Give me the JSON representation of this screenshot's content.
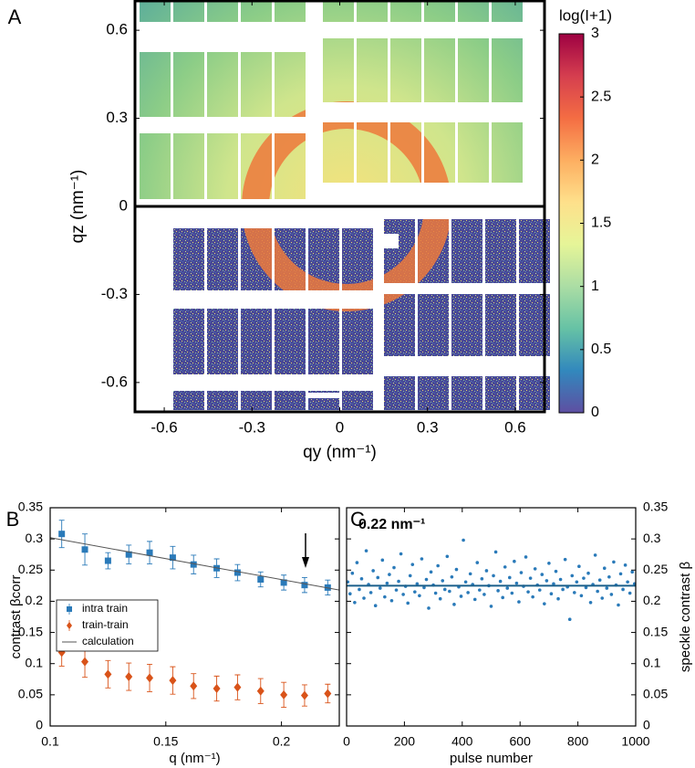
{
  "chart_data": [
    {
      "type": "heatmap",
      "panel_label": "A",
      "xlabel": "qy (nm⁻¹)",
      "ylabel": "qz (nm⁻¹)",
      "xlim": [
        -0.7,
        0.7
      ],
      "xticks": [
        -0.6,
        -0.3,
        0,
        0.3,
        0.6
      ],
      "ylim": [
        -0.7,
        0.7
      ],
      "yticks": [
        -0.6,
        -0.3,
        0,
        0.3,
        0.6
      ],
      "colorbar_label": "log(I+1)",
      "clim": [
        0,
        3
      ],
      "cticks": [
        0,
        0.5,
        1,
        1.5,
        2,
        2.5,
        3
      ],
      "colormap": [
        "#5e4fa2",
        "#3288bd",
        "#66c2a5",
        "#abdda4",
        "#e6f598",
        "#fee08b",
        "#fdae61",
        "#f46d43",
        "#d53e4f",
        "#9e0142"
      ]
    },
    {
      "type": "errorbar",
      "panel_label": "B",
      "xlabel": "q (nm⁻¹)",
      "ylabel": "contrast βcorr",
      "xlim": [
        0.1,
        0.225
      ],
      "xticks": [
        0.1,
        0.15,
        0.2
      ],
      "ylim": [
        0,
        0.35
      ],
      "yticks": [
        0,
        0.05,
        0.1,
        0.15,
        0.2,
        0.25,
        0.3,
        0.35
      ],
      "legend": "upper left",
      "series": [
        {
          "name": "intra train",
          "color": "#2a7ab9",
          "marker": "square",
          "x": [
            0.105,
            0.115,
            0.125,
            0.134,
            0.143,
            0.153,
            0.162,
            0.172,
            0.181,
            0.191,
            0.201,
            0.21,
            0.22
          ],
          "values": [
            0.308,
            0.283,
            0.265,
            0.275,
            0.278,
            0.27,
            0.259,
            0.253,
            0.246,
            0.235,
            0.23,
            0.226,
            0.222
          ],
          "errors": [
            0.022,
            0.025,
            0.013,
            0.015,
            0.018,
            0.018,
            0.015,
            0.015,
            0.013,
            0.012,
            0.012,
            0.012,
            0.012
          ]
        },
        {
          "name": "train-train",
          "color": "#d95319",
          "marker": "diamond",
          "x": [
            0.105,
            0.115,
            0.125,
            0.134,
            0.143,
            0.153,
            0.162,
            0.172,
            0.181,
            0.191,
            0.201,
            0.21,
            0.22
          ],
          "values": [
            0.118,
            0.103,
            0.083,
            0.079,
            0.077,
            0.073,
            0.064,
            0.06,
            0.062,
            0.056,
            0.05,
            0.049,
            0.052
          ],
          "errors": [
            0.022,
            0.025,
            0.022,
            0.022,
            0.022,
            0.022,
            0.02,
            0.02,
            0.02,
            0.02,
            0.02,
            0.017,
            0.015
          ]
        },
        {
          "name": "calculation",
          "color": "#555555",
          "marker": "line",
          "x": [
            0.1,
            0.225
          ],
          "values": [
            0.302,
            0.218
          ]
        }
      ]
    },
    {
      "type": "scatter",
      "panel_label": "C",
      "xlabel": "pulse number",
      "ylabel": "speckle contrast β",
      "annotation": "0.22 nm⁻¹",
      "y_axis_side": "right",
      "xlim": [
        0,
        1000
      ],
      "xticks": [
        0,
        200,
        400,
        600,
        800,
        1000
      ],
      "ylim": [
        0,
        0.35
      ],
      "yticks": [
        0,
        0.05,
        0.1,
        0.15,
        0.2,
        0.25,
        0.3,
        0.35
      ],
      "reference_line": 0.225,
      "reference_color": "#1a5f8a",
      "series": [
        {
          "color": "#2a7ab9",
          "x": [
            4,
            12,
            20,
            28,
            36,
            44,
            52,
            60,
            68,
            76,
            84,
            92,
            100,
            108,
            116,
            124,
            132,
            140,
            148,
            156,
            164,
            172,
            180,
            188,
            196,
            204,
            212,
            220,
            228,
            236,
            244,
            252,
            260,
            268,
            276,
            284,
            292,
            300,
            308,
            316,
            324,
            332,
            340,
            348,
            356,
            364,
            372,
            380,
            388,
            396,
            404,
            412,
            420,
            428,
            436,
            444,
            452,
            460,
            468,
            476,
            484,
            492,
            500,
            508,
            516,
            524,
            532,
            540,
            548,
            556,
            564,
            572,
            580,
            588,
            596,
            604,
            612,
            620,
            628,
            636,
            644,
            652,
            660,
            668,
            676,
            684,
            692,
            700,
            708,
            716,
            724,
            732,
            740,
            748,
            756,
            764,
            772,
            780,
            788,
            796,
            804,
            812,
            820,
            828,
            836,
            844,
            852,
            860,
            868,
            876,
            884,
            892,
            900,
            908,
            916,
            924,
            932,
            940,
            948,
            956,
            964,
            972,
            980,
            988,
            996
          ],
          "values": [
            0.231,
            0.212,
            0.245,
            0.198,
            0.262,
            0.219,
            0.236,
            0.205,
            0.281,
            0.227,
            0.214,
            0.249,
            0.193,
            0.238,
            0.221,
            0.266,
            0.207,
            0.229,
            0.243,
            0.201,
            0.254,
            0.218,
            0.232,
            0.276,
            0.211,
            0.224,
            0.197,
            0.241,
            0.259,
            0.215,
            0.228,
            0.209,
            0.268,
            0.222,
            0.235,
            0.189,
            0.247,
            0.226,
            0.213,
            0.257,
            0.204,
            0.233,
            0.219,
            0.272,
            0.216,
            0.239,
            0.195,
            0.251,
            0.223,
            0.208,
            0.298,
            0.231,
            0.214,
            0.244,
            0.227,
            0.203,
            0.262,
            0.218,
            0.236,
            0.211,
            0.249,
            0.225,
            0.192,
            0.241,
            0.279,
            0.217,
            0.232,
            0.206,
            0.255,
            0.221,
            0.238,
            0.213,
            0.264,
            0.229,
            0.199,
            0.246,
            0.224,
            0.271,
            0.215,
            0.237,
            0.207,
            0.252,
            0.226,
            0.218,
            0.243,
            0.196,
            0.233,
            0.261,
            0.212,
            0.228,
            0.248,
            0.204,
            0.235,
            0.219,
            0.267,
            0.223,
            0.171,
            0.241,
            0.214,
            0.231,
            0.256,
            0.209,
            0.237,
            0.222,
            0.245,
            0.198,
            0.227,
            0.274,
            0.216,
            0.234,
            0.205,
            0.253,
            0.221,
            0.239,
            0.211,
            0.263,
            0.226,
            0.194,
            0.244,
            0.219,
            0.258,
            0.231,
            0.213,
            0.247,
            0.228
          ]
        }
      ]
    }
  ]
}
